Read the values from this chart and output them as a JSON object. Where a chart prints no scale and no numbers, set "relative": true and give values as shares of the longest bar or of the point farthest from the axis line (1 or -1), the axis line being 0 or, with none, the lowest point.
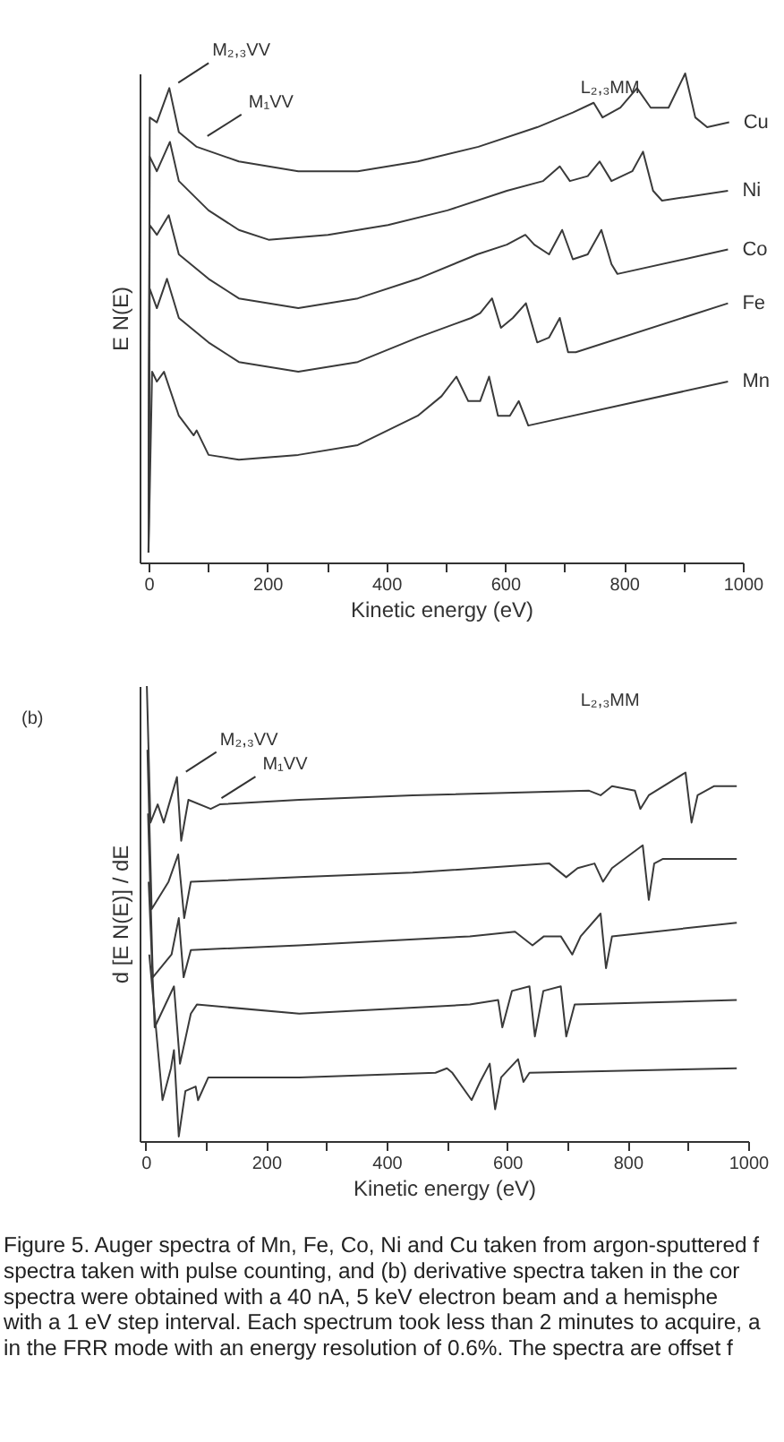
{
  "chart_data": [
    {
      "type": "line",
      "relative": true,
      "xlabel": "Kinetic energy (eV)",
      "ylabel": "E N(E)",
      "xlim": [
        -15,
        1000
      ],
      "xticks": [
        0,
        {
          "value": 100,
          "label": null
        },
        200,
        {
          "value": 300,
          "label": null
        },
        400,
        {
          "value": 500,
          "label": null
        },
        600,
        {
          "value": 700,
          "label": null
        },
        800,
        {
          "value": 900,
          "label": null
        },
        1000
      ],
      "series": [
        {
          "name": "Cu",
          "color": "#3a3a3a",
          "x": [
            0,
            2,
            14,
            35,
            51,
            81,
            152,
            252,
            352,
            453,
            555,
            654,
            714,
            749,
            764,
            794,
            822,
            845,
            875,
            903,
            920,
            940,
            977
          ],
          "values": [
            0.02,
            0.91,
            0.9,
            0.97,
            0.88,
            0.85,
            0.82,
            0.8,
            0.8,
            0.82,
            0.85,
            0.89,
            0.92,
            0.94,
            0.91,
            0.93,
            0.97,
            0.93,
            0.93,
            1.0,
            0.91,
            0.89,
            0.9
          ]
        },
        {
          "name": "Ni",
          "color": "#3a3a3a",
          "x": [
            0,
            2,
            14,
            36,
            51,
            101,
            152,
            202,
            302,
            403,
            503,
            603,
            664,
            692,
            709,
            739,
            759,
            779,
            814,
            832,
            849,
            864,
            975
          ],
          "values": [
            0.02,
            0.83,
            0.8,
            0.86,
            0.78,
            0.72,
            0.68,
            0.66,
            0.67,
            0.69,
            0.72,
            0.76,
            0.78,
            0.81,
            0.78,
            0.79,
            0.82,
            0.78,
            0.8,
            0.84,
            0.76,
            0.74,
            0.76
          ]
        },
        {
          "name": "Co",
          "color": "#3a3a3a",
          "x": [
            0,
            2,
            14,
            34,
            51,
            101,
            152,
            252,
            352,
            453,
            553,
            603,
            634,
            649,
            674,
            696,
            714,
            739,
            762,
            779,
            789,
            975
          ],
          "values": [
            0.02,
            0.69,
            0.67,
            0.71,
            0.63,
            0.58,
            0.54,
            0.52,
            0.54,
            0.58,
            0.63,
            0.65,
            0.67,
            0.65,
            0.63,
            0.68,
            0.62,
            0.63,
            0.68,
            0.61,
            0.59,
            0.64
          ]
        },
        {
          "name": "Fe",
          "color": "#3a3a3a",
          "x": [
            0,
            2,
            14,
            31,
            51,
            101,
            152,
            252,
            352,
            453,
            543,
            558,
            578,
            593,
            613,
            635,
            654,
            674,
            692,
            706,
            719,
            975
          ],
          "values": [
            0.02,
            0.56,
            0.52,
            0.58,
            0.5,
            0.45,
            0.41,
            0.39,
            0.41,
            0.46,
            0.5,
            0.51,
            0.54,
            0.48,
            0.5,
            0.53,
            0.45,
            0.46,
            0.5,
            0.43,
            0.43,
            0.53
          ]
        },
        {
          "name": "Mn",
          "color": "#3a3a3a",
          "x": [
            0,
            6,
            14,
            26,
            51,
            76,
            81,
            101,
            152,
            252,
            352,
            453,
            493,
            518,
            538,
            558,
            573,
            588,
            608,
            623,
            639,
            975
          ],
          "values": [
            0.02,
            0.39,
            0.37,
            0.39,
            0.3,
            0.26,
            0.27,
            0.22,
            0.21,
            0.22,
            0.24,
            0.3,
            0.34,
            0.38,
            0.33,
            0.33,
            0.38,
            0.3,
            0.3,
            0.33,
            0.28,
            0.37
          ]
        }
      ],
      "annotations": [
        {
          "text": "M₂,₃VV",
          "x": 35,
          "y": 0.97
        },
        {
          "text": "M₁VV",
          "x": 81,
          "y": 0.85
        },
        "L₂,₃MM"
      ]
    },
    {
      "type": "line",
      "relative": true,
      "xlabel": "Kinetic energy (eV)",
      "ylabel": "d [E N(E)] / dE",
      "xlim": [
        -10,
        1000
      ],
      "xticks": [
        0,
        {
          "value": 100,
          "label": null
        },
        200,
        {
          "value": 300,
          "label": null
        },
        400,
        {
          "value": 500,
          "label": null
        },
        600,
        {
          "value": 700,
          "label": null
        },
        800,
        {
          "value": 900,
          "label": null
        },
        1000
      ],
      "series": [
        {
          "color": "#3a3a3a",
          "x": [
            2,
            8,
            20,
            30,
            52,
            59,
            71,
            108,
            123,
            255,
            443,
            736,
            755,
            774,
            812,
            821,
            835,
            896,
            906,
            916,
            943,
            981
          ],
          "values": [
            1.0,
            0.7,
            0.74,
            0.7,
            0.8,
            0.66,
            0.75,
            0.73,
            0.74,
            0.75,
            0.76,
            0.77,
            0.76,
            0.78,
            0.77,
            0.73,
            0.76,
            0.81,
            0.7,
            0.76,
            0.78,
            0.78
          ]
        },
        {
          "color": "#3a3a3a",
          "x": [
            3,
            10,
            38,
            54,
            64,
            75,
            255,
            443,
            670,
            698,
            717,
            745,
            759,
            774,
            825,
            835,
            844,
            858,
            981
          ],
          "values": [
            0.86,
            0.51,
            0.57,
            0.63,
            0.49,
            0.57,
            0.58,
            0.59,
            0.61,
            0.58,
            0.6,
            0.61,
            0.57,
            0.6,
            0.65,
            0.53,
            0.61,
            0.62,
            0.62
          ]
        },
        {
          "color": "#3a3a3a",
          "x": [
            4,
            12,
            43,
            55,
            63,
            75,
            255,
            538,
            613,
            642,
            661,
            689,
            708,
            722,
            755,
            764,
            774,
            981
          ],
          "values": [
            0.72,
            0.36,
            0.41,
            0.49,
            0.36,
            0.42,
            0.43,
            0.45,
            0.46,
            0.43,
            0.45,
            0.45,
            0.41,
            0.45,
            0.5,
            0.38,
            0.45,
            0.48
          ]
        },
        {
          "color": "#3a3a3a",
          "x": [
            5,
            15,
            47,
            57,
            75,
            85,
            255,
            538,
            585,
            592,
            608,
            637,
            646,
            660,
            689,
            698,
            712,
            981
          ],
          "values": [
            0.57,
            0.25,
            0.34,
            0.17,
            0.28,
            0.3,
            0.28,
            0.3,
            0.31,
            0.25,
            0.33,
            0.34,
            0.23,
            0.33,
            0.34,
            0.23,
            0.3,
            0.31
          ]
        },
        {
          "color": "#3a3a3a",
          "x": [
            6,
            28,
            42,
            47,
            55,
            66,
            83,
            87,
            104,
            255,
            481,
            500,
            509,
            541,
            555,
            571,
            580,
            590,
            618,
            627,
            637,
            981
          ],
          "values": [
            0.41,
            0.09,
            0.16,
            0.2,
            0.01,
            0.11,
            0.12,
            0.09,
            0.14,
            0.14,
            0.15,
            0.16,
            0.15,
            0.09,
            0.13,
            0.17,
            0.07,
            0.14,
            0.18,
            0.13,
            0.15,
            0.16
          ]
        }
      ],
      "annotations": [
        {
          "text": "M₂,₃VV",
          "x": 52,
          "y": 0.8
        },
        {
          "text": "M₁VV",
          "x": 108,
          "y": 0.73
        },
        "L₂,₃MM",
        "(b)"
      ]
    },
    {
      "type": "other",
      "annotations": [
        "Figure 5. Auger spectra of Mn, Fe, Co, Ni and Cu taken from argon-sputtered f",
        "spectra taken with pulse counting, and (b) derivative spectra taken in the cor",
        "spectra were obtained with a 40 nA, 5 keV electron beam and a hemisphe",
        "with a 1 eV step interval. Each spectrum took less than 2 minutes to acquire, a",
        "in the FRR mode with an energy resolution of 0.6%. The spectra are offset f"
      ]
    }
  ]
}
